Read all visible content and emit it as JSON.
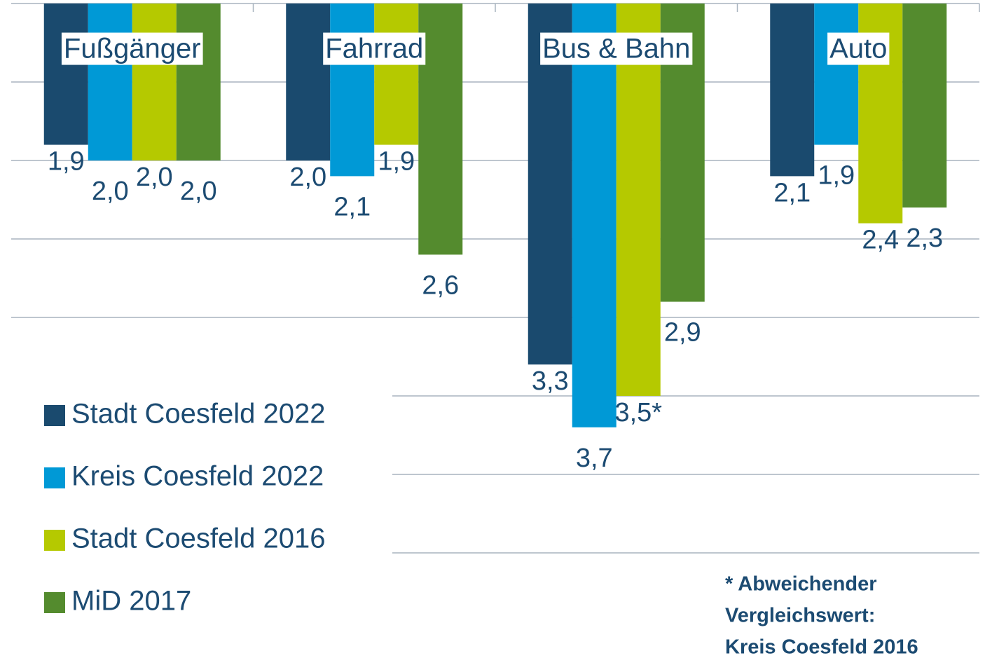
{
  "chart_data": {
    "type": "bar",
    "categories": [
      "Fußgänger",
      "Fahrrad",
      "Bus & Bahn",
      "Auto"
    ],
    "series": [
      {
        "name": "Stadt Coesfeld 2022",
        "color": "#1a4a6e",
        "values": [
          1.9,
          2.0,
          3.3,
          2.1
        ],
        "value_labels": [
          "1,9",
          "2,0",
          "3,3",
          "2,1"
        ]
      },
      {
        "name": "Kreis Coesfeld 2022",
        "color": "#0099d6",
        "values": [
          2.0,
          2.1,
          3.7,
          1.9
        ],
        "value_labels": [
          "2,0",
          "2,1",
          "3,7",
          "1,9"
        ]
      },
      {
        "name": "Stadt Coesfeld 2016",
        "color": "#b5c900",
        "values": [
          2.0,
          1.9,
          3.5,
          2.4
        ],
        "value_labels": [
          "2,0",
          "1,9",
          "3,5*",
          "2,4"
        ]
      },
      {
        "name": "MiD 2017",
        "color": "#548b2e",
        "values": [
          2.0,
          2.6,
          2.9,
          2.3
        ],
        "value_labels": [
          "2,0",
          "2,6",
          "2,9",
          "2,3"
        ]
      }
    ],
    "ylim": [
      1,
      4.5
    ],
    "yticks": [
      1,
      1.5,
      2,
      2.5,
      3,
      3.5,
      4,
      4.5
    ],
    "y_inverted": true,
    "grid": true,
    "legend": "bottom-left",
    "annotation": [
      "* Abweichender",
      "Vergleichswert:",
      "Kreis Coesfeld 2016"
    ]
  }
}
